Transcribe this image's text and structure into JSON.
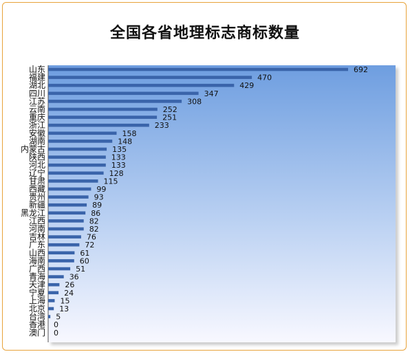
{
  "chart_data": {
    "type": "bar",
    "orientation": "horizontal",
    "title": "全国各省地理标志商标数量",
    "xlabel": "",
    "ylabel": "",
    "xlim": [
      0,
      750
    ],
    "grid": false,
    "legend": "none",
    "colors": {
      "bar": "#3a64aa",
      "plot_gradient_top": "#6e9ee0",
      "plot_gradient_bottom": "#f8f8ff",
      "frame": "#e8a33a"
    },
    "categories": [
      "山东",
      "福建",
      "湖北",
      "四川",
      "江苏",
      "云南",
      "重庆",
      "浙江",
      "安徽",
      "湖南",
      "内蒙古",
      "陕西",
      "河北",
      "辽宁",
      "甘肃",
      "西藏",
      "贵州",
      "新疆",
      "黑龙江",
      "江西",
      "河南",
      "吉林",
      "广东",
      "山西",
      "海南",
      "广西",
      "青海",
      "天津",
      "宁夏",
      "上海",
      "北京",
      "台湾",
      "香港",
      "澳门"
    ],
    "values": [
      692,
      470,
      429,
      347,
      308,
      252,
      251,
      233,
      158,
      148,
      135,
      133,
      133,
      128,
      115,
      99,
      93,
      89,
      86,
      82,
      82,
      76,
      72,
      61,
      60,
      51,
      36,
      26,
      24,
      15,
      13,
      5,
      0,
      0
    ]
  }
}
